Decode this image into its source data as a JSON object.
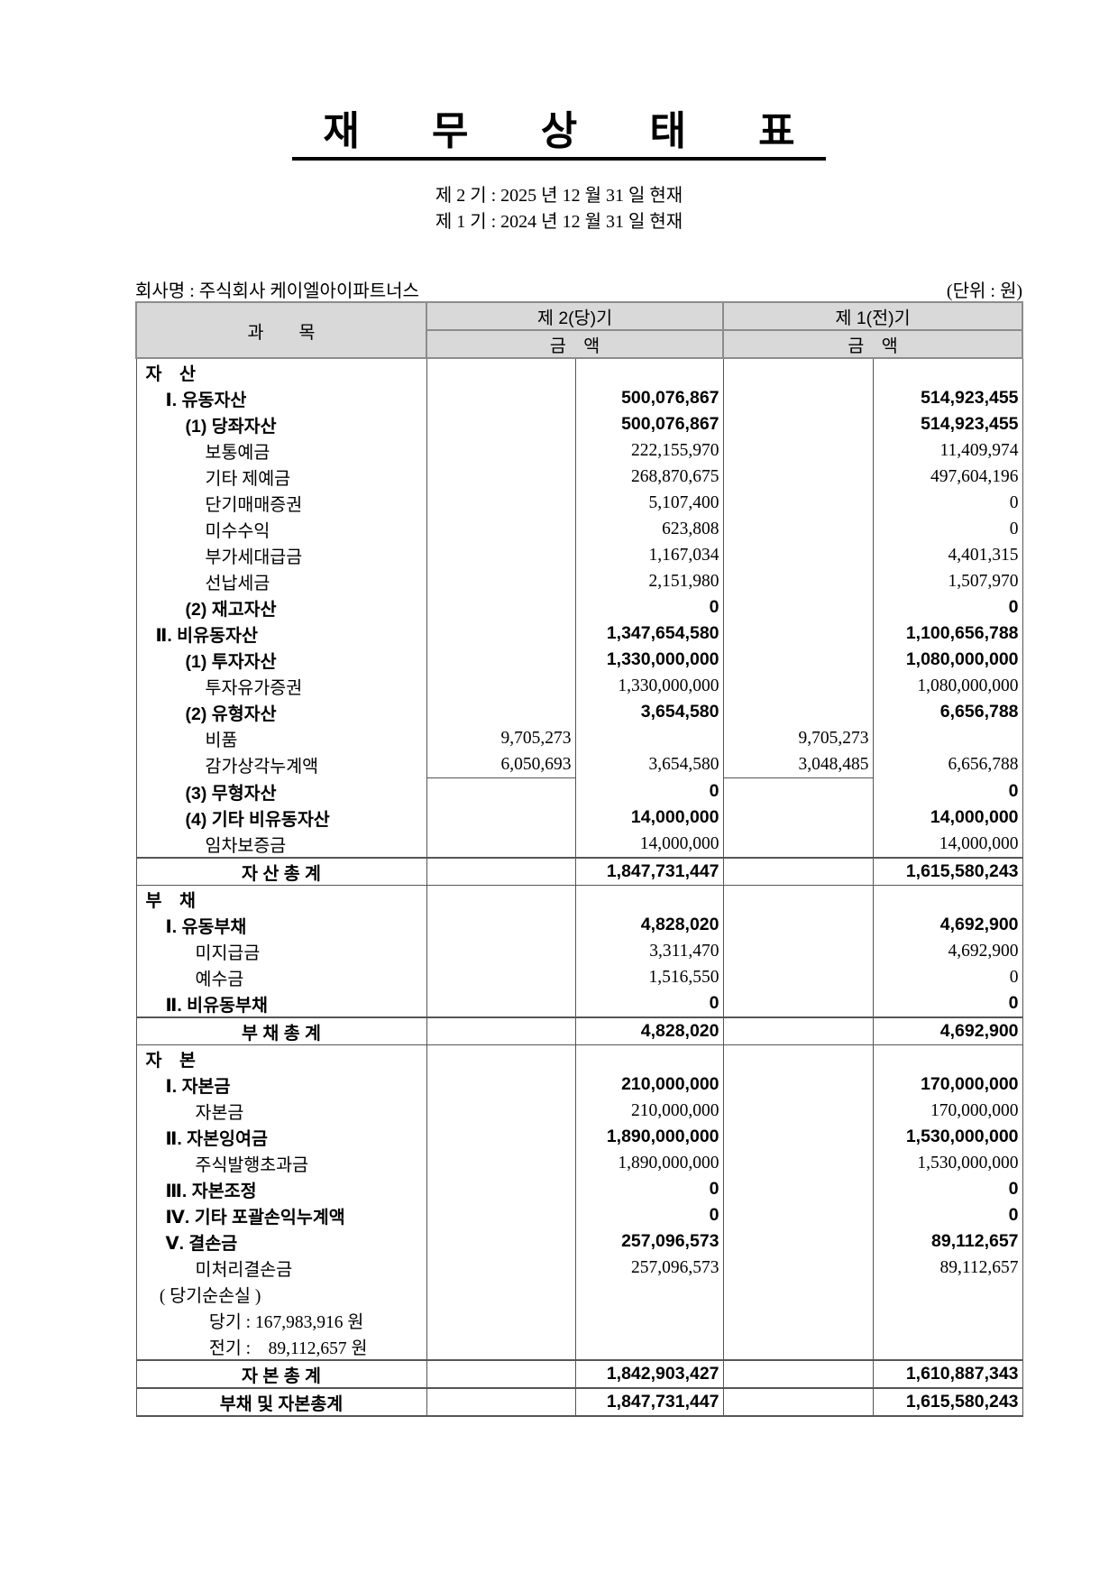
{
  "title": "재 무 상 태 표",
  "periods": [
    "제 2 기 : 2025 년 12 월 31 일 현재",
    "제 1 기 : 2024 년 12 월 31 일 현재"
  ],
  "company": "회사명 : 주식회사 케이엘아이파트너스",
  "unit": "(단위 : 원)",
  "header": {
    "subject": "과　　목",
    "current": "제 2(당)기",
    "previous": "제 1(전)기",
    "amount": "금　액"
  },
  "rows": [
    {
      "label": "자　산",
      "indent": 0,
      "type": "section",
      "v": [
        "",
        "",
        "",
        ""
      ]
    },
    {
      "label": "Ⅰ. 유동자산",
      "indent": 1,
      "type": "bold",
      "v": [
        "",
        "500,076,867",
        "",
        "514,923,455"
      ]
    },
    {
      "label": "(1) 당좌자산",
      "indent": 2,
      "type": "bold",
      "v": [
        "",
        "500,076,867",
        "",
        "514,923,455"
      ]
    },
    {
      "label": "보통예금",
      "indent": 3,
      "type": "normal",
      "v": [
        "",
        "222,155,970",
        "",
        "11,409,974"
      ]
    },
    {
      "label": "기타 제예금",
      "indent": 3,
      "type": "normal",
      "v": [
        "",
        "268,870,675",
        "",
        "497,604,196"
      ]
    },
    {
      "label": "단기매매증권",
      "indent": 3,
      "type": "normal",
      "v": [
        "",
        "5,107,400",
        "",
        "0"
      ]
    },
    {
      "label": "미수수익",
      "indent": 3,
      "type": "normal",
      "v": [
        "",
        "623,808",
        "",
        "0"
      ]
    },
    {
      "label": "부가세대급금",
      "indent": 3,
      "type": "normal",
      "v": [
        "",
        "1,167,034",
        "",
        "4,401,315"
      ]
    },
    {
      "label": "선납세금",
      "indent": 3,
      "type": "normal",
      "v": [
        "",
        "2,151,980",
        "",
        "1,507,970"
      ]
    },
    {
      "label": "(2) 재고자산",
      "indent": 2,
      "type": "bold",
      "v": [
        "",
        "0",
        "",
        "0"
      ]
    },
    {
      "label": "Ⅱ. 비유동자산",
      "indent": 0.5,
      "type": "bold",
      "v": [
        "",
        "1,347,654,580",
        "",
        "1,100,656,788"
      ]
    },
    {
      "label": "(1) 투자자산",
      "indent": 2,
      "type": "bold",
      "v": [
        "",
        "1,330,000,000",
        "",
        "1,080,000,000"
      ]
    },
    {
      "label": "투자유가증권",
      "indent": 3,
      "type": "normal",
      "v": [
        "",
        "1,330,000,000",
        "",
        "1,080,000,000"
      ]
    },
    {
      "label": "(2) 유형자산",
      "indent": 2,
      "type": "bold",
      "v": [
        "",
        "3,654,580",
        "",
        "6,656,788"
      ]
    },
    {
      "label": "비품",
      "indent": 3,
      "type": "normal",
      "v": [
        "9,705,273",
        "",
        "9,705,273",
        ""
      ]
    },
    {
      "label": "감가상각누계액",
      "indent": 3,
      "type": "underline",
      "v": [
        "6,050,693",
        "3,654,580",
        "3,048,485",
        "6,656,788"
      ]
    },
    {
      "label": "(3) 무형자산",
      "indent": 2,
      "type": "bold",
      "v": [
        "",
        "0",
        "",
        "0"
      ]
    },
    {
      "label": "(4) 기타 비유동자산",
      "indent": 2,
      "type": "bold",
      "v": [
        "",
        "14,000,000",
        "",
        "14,000,000"
      ]
    },
    {
      "label": "임차보증금",
      "indent": 3,
      "type": "normal",
      "v": [
        "",
        "14,000,000",
        "",
        "14,000,000"
      ]
    },
    {
      "label": "자 산 총 계",
      "indent": 0,
      "type": "total",
      "v": [
        "",
        "1,847,731,447",
        "",
        "1,615,580,243"
      ]
    },
    {
      "label": "부　채",
      "indent": 0,
      "type": "section",
      "v": [
        "",
        "",
        "",
        ""
      ]
    },
    {
      "label": "Ⅰ. 유동부채",
      "indent": 1,
      "type": "bold",
      "v": [
        "",
        "4,828,020",
        "",
        "4,692,900"
      ]
    },
    {
      "label": "미지급금",
      "indent": 2.5,
      "type": "normal",
      "v": [
        "",
        "3,311,470",
        "",
        "4,692,900"
      ]
    },
    {
      "label": "예수금",
      "indent": 2.5,
      "type": "normal",
      "v": [
        "",
        "1,516,550",
        "",
        "0"
      ]
    },
    {
      "label": "Ⅱ. 비유동부채",
      "indent": 1,
      "type": "bold",
      "v": [
        "",
        "0",
        "",
        "0"
      ]
    },
    {
      "label": "부 채 총 계",
      "indent": 0,
      "type": "total",
      "v": [
        "",
        "4,828,020",
        "",
        "4,692,900"
      ]
    },
    {
      "label": "자　본",
      "indent": 0,
      "type": "section",
      "v": [
        "",
        "",
        "",
        ""
      ]
    },
    {
      "label": "Ⅰ. 자본금",
      "indent": 1,
      "type": "bold",
      "v": [
        "",
        "210,000,000",
        "",
        "170,000,000"
      ]
    },
    {
      "label": "자본금",
      "indent": 2.5,
      "type": "normal",
      "v": [
        "",
        "210,000,000",
        "",
        "170,000,000"
      ]
    },
    {
      "label": "Ⅱ. 자본잉여금",
      "indent": 1,
      "type": "bold",
      "v": [
        "",
        "1,890,000,000",
        "",
        "1,530,000,000"
      ]
    },
    {
      "label": "주식발행초과금",
      "indent": 2.5,
      "type": "normal",
      "v": [
        "",
        "1,890,000,000",
        "",
        "1,530,000,000"
      ]
    },
    {
      "label": "Ⅲ. 자본조정",
      "indent": 1,
      "type": "bold",
      "v": [
        "",
        "0",
        "",
        "0"
      ]
    },
    {
      "label": "Ⅳ. 기타 포괄손익누계액",
      "indent": 1,
      "type": "bold",
      "v": [
        "",
        "0",
        "",
        "0"
      ]
    },
    {
      "label": "Ⅴ. 결손금",
      "indent": 1,
      "type": "bold",
      "v": [
        "",
        "257,096,573",
        "",
        "89,112,657"
      ]
    },
    {
      "label": "미처리결손금",
      "indent": 2.5,
      "type": "normal",
      "v": [
        "",
        "257,096,573",
        "",
        "89,112,657"
      ]
    },
    {
      "label": "( 당기순손실 )",
      "indent": 0.7,
      "type": "normal",
      "v": [
        "",
        "",
        "",
        ""
      ]
    },
    {
      "label": "당기 : 167,983,916 원",
      "indent": 3.2,
      "type": "normal",
      "v": [
        "",
        "",
        "",
        ""
      ]
    },
    {
      "label": "전기 :　89,112,657 원",
      "indent": 3.2,
      "type": "normal",
      "v": [
        "",
        "",
        "",
        ""
      ]
    },
    {
      "label": "자 본 총 계",
      "indent": 0,
      "type": "total",
      "v": [
        "",
        "1,842,903,427",
        "",
        "1,610,887,343"
      ]
    },
    {
      "label": "부채 및 자본총계",
      "indent": 0,
      "type": "total",
      "v": [
        "",
        "1,847,731,447",
        "",
        "1,615,580,243"
      ]
    }
  ]
}
